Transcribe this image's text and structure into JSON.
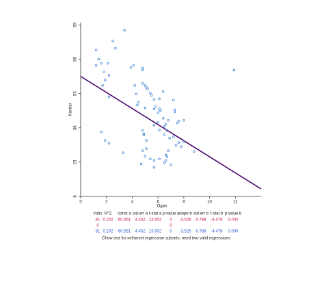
{
  "chart_data": {
    "type": "scatter",
    "xlabel": "Ogan",
    "ylabel": "Kácdar",
    "xlim": [
      0,
      14
    ],
    "ylim": [
      8,
      84
    ],
    "xticks": [
      0,
      2,
      4,
      6,
      8,
      10,
      12
    ],
    "yticks": [
      8,
      23,
      38,
      53,
      68,
      83
    ],
    "color": "#3a7fd5",
    "line_color": "#4b0a6e",
    "fit_line": {
      "x": [
        0,
        14
      ],
      "y": [
        60.5,
        11.3
      ]
    },
    "x": [
      1.2,
      2.5,
      3.4,
      2.7,
      1.4,
      1.2,
      1.6,
      1.8,
      2.1,
      2.2,
      1.9,
      1.7,
      2.2,
      1.6,
      1.9,
      2.2,
      3.3,
      3.9,
      4.1,
      4.8,
      4.8,
      5,
      5.1,
      5.2,
      4.2,
      4.3,
      4.5,
      4.8,
      5.4,
      5.5,
      5.7,
      6.1,
      6.4,
      6.2,
      5.8,
      5.7,
      5,
      4.4,
      6.1,
      6,
      6.4,
      7.2,
      7.3,
      7.6,
      7.3,
      8,
      7.5,
      6.8,
      6,
      5.7,
      6.1,
      6.5,
      6.6,
      6.7,
      6.5,
      6.9,
      7.2,
      7.4,
      7.6,
      8,
      7.8,
      6.8,
      6.6,
      6.7,
      6.6,
      6.5,
      6.1,
      5.7,
      5.1,
      5.1,
      4.9,
      4.8,
      4.9,
      4.8,
      5,
      4.7,
      5.7,
      5.4,
      7,
      8.8,
      11.9
    ],
    "y": [
      72,
      76,
      80.7,
      72.8,
      68,
      65.3,
      66.2,
      62.5,
      66.2,
      61,
      58.9,
      56.5,
      51.6,
      36.2,
      32.5,
      31.3,
      27.1,
      64.4,
      65.3,
      64.1,
      63.2,
      56.5,
      55.6,
      55,
      56.5,
      52.8,
      49.2,
      57.4,
      53.2,
      52.2,
      50.4,
      50.7,
      53.8,
      45.6,
      47.4,
      46.2,
      46.8,
      48,
      46.5,
      44.7,
      42.2,
      50.1,
      45.9,
      41,
      45,
      41.3,
      40.1,
      41.3,
      40.4,
      39.2,
      37.1,
      38.6,
      39.5,
      36.8,
      35,
      33.5,
      34.1,
      30.4,
      31.6,
      31.9,
      29.8,
      28,
      26.2,
      25.3,
      23.8,
      22.8,
      24.4,
      23.8,
      32.5,
      28.9,
      35.3,
      36.8,
      35,
      28,
      25.6,
      22.2,
      20.7,
      24.4,
      21.9,
      27.7,
      63.2
    ]
  },
  "table": {
    "headers": [
      "#obs",
      "R^2",
      "const a",
      "std-err a",
      "t-stat a",
      "p-value a",
      "slope b",
      "std-err b",
      "t-stat b",
      "p-value b"
    ],
    "row_colors": [
      "#c0143c",
      "#c0143c",
      "#2a5bd7"
    ],
    "rows": [
      [
        "81",
        "0.202",
        "60.551",
        "4.452",
        "13.602",
        "0",
        "-3.526",
        "0.788",
        "-4.478",
        "0.000"
      ],
      [
        "0",
        null,
        null,
        null,
        null,
        "0",
        null,
        null,
        null,
        null
      ],
      [
        "81",
        "0.202",
        "60.551",
        "4.452",
        "13.602",
        "0",
        "-3.526",
        "0.788",
        "-4.478",
        "0.000"
      ]
    ],
    "note": "Chow test for set/unset regression subsets: need two valid regressions"
  }
}
